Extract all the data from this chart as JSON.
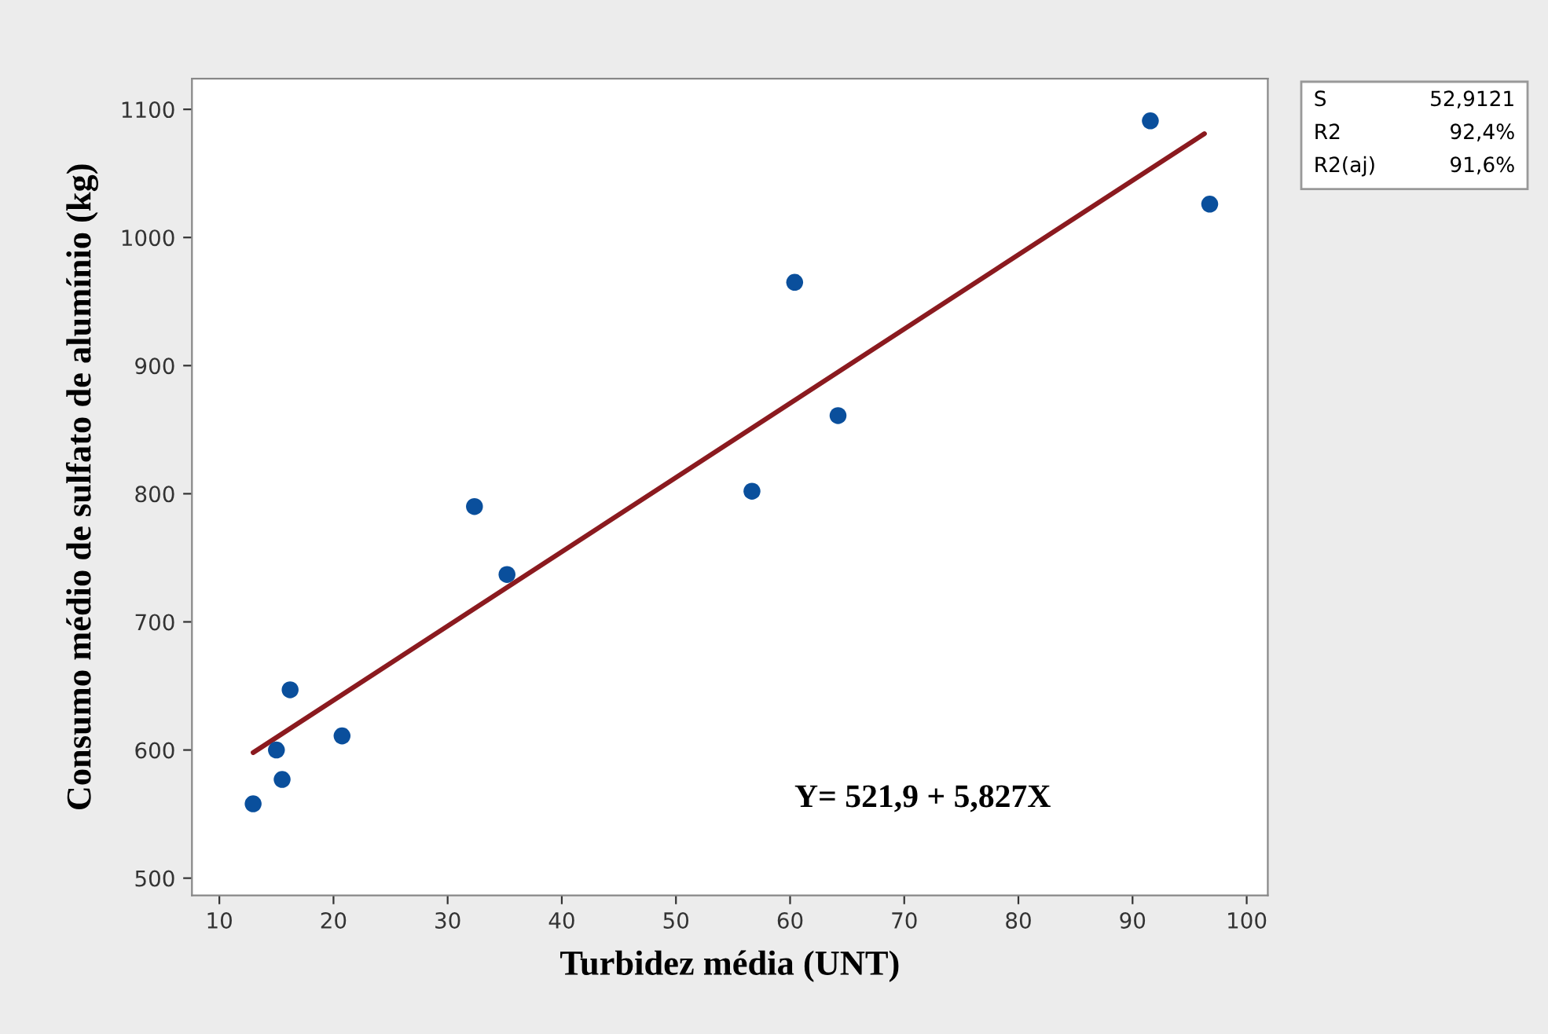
{
  "chart_data": {
    "type": "scatter",
    "xlabel": "Turbidez média (UNT)",
    "ylabel": "Consumo médio de sulfato de alumínio (kg)",
    "x": [
      12.96,
      15.0,
      15.5,
      16.2,
      20.75,
      32.35,
      35.2,
      56.66,
      60.4,
      64.2,
      91.56,
      96.76
    ],
    "series": [
      {
        "color": "#0a4f9c",
        "marker": "circle",
        "values": [
          558,
          600,
          577,
          647,
          611,
          790,
          737,
          802,
          965,
          861,
          1091,
          1026
        ]
      },
      {
        "type": "line",
        "color": "#8b1a1f",
        "marker": "none",
        "x": [
          12.96,
          96.3
        ],
        "values": [
          598,
          1081
        ]
      }
    ],
    "xlim": [
      7.6,
      101.85
    ],
    "ylim": [
      486.5,
      1124
    ],
    "xticks": [
      10,
      20,
      30,
      40,
      50,
      60,
      70,
      80,
      90,
      100
    ],
    "yticks": [
      500,
      600,
      700,
      800,
      900,
      1000,
      1100
    ],
    "grid": false,
    "legend": false,
    "annotations": [
      "Y= 521,9 + 5,827X",
      "S",
      "52,9121",
      "R2",
      "92,4%",
      "R2(aj)",
      "91,6%"
    ]
  }
}
